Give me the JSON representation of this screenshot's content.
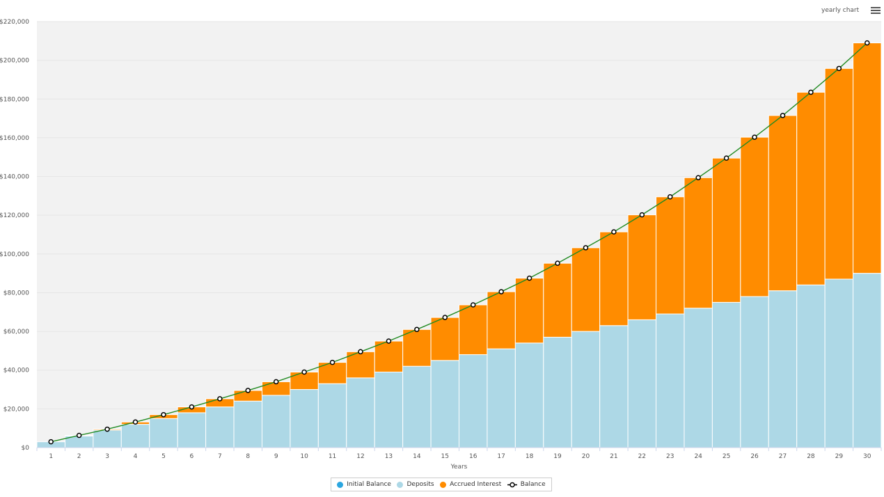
{
  "menu": {
    "title": "yearly chart",
    "icon": "hamburger-menu-icon"
  },
  "colors": {
    "initial_balance": "#2ba6e0",
    "deposits": "#add8e6",
    "accrued_interest": "#ff8c00",
    "balance_line": "#228b22",
    "plot_bg": "#f2f2f2"
  },
  "legend": [
    {
      "label": "Initial Balance",
      "color": "#2ba6e0",
      "kind": "dot"
    },
    {
      "label": "Deposits",
      "color": "#add8e6",
      "kind": "dot"
    },
    {
      "label": "Accrued Interest",
      "color": "#ff8c00",
      "kind": "dot"
    },
    {
      "label": "Balance",
      "color": "#000000",
      "kind": "line-marker"
    }
  ],
  "chart_data": {
    "type": "bar",
    "stacked": true,
    "title": "",
    "xlabel": "Years",
    "ylabel": "",
    "ylim": [
      0,
      220000
    ],
    "y_ticks": [
      0,
      20000,
      40000,
      60000,
      80000,
      100000,
      120000,
      140000,
      160000,
      180000,
      200000,
      220000
    ],
    "y_tick_labels": [
      "$0",
      "$20,000",
      "$40,000",
      "$60,000",
      "$80,000",
      "$100,000",
      "$120,000",
      "$140,000",
      "$160,000",
      "$180,000",
      "$200,000",
      "$220,000"
    ],
    "categories": [
      "1",
      "2",
      "3",
      "4",
      "5",
      "6",
      "7",
      "8",
      "9",
      "10",
      "11",
      "12",
      "13",
      "14",
      "15",
      "16",
      "17",
      "18",
      "19",
      "20",
      "21",
      "22",
      "23",
      "24",
      "25",
      "26",
      "27",
      "28",
      "29",
      "30"
    ],
    "series": [
      {
        "name": "Initial Balance",
        "values": [
          0,
          0,
          0,
          0,
          0,
          0,
          0,
          0,
          0,
          0,
          0,
          0,
          0,
          0,
          0,
          0,
          0,
          0,
          0,
          0,
          0,
          0,
          0,
          0,
          0,
          0,
          0,
          0,
          0,
          0
        ]
      },
      {
        "name": "Deposits",
        "values": [
          3000,
          6000,
          9000,
          12000,
          15000,
          18000,
          21000,
          24000,
          27000,
          30000,
          33000,
          36000,
          39000,
          42000,
          45000,
          48000,
          51000,
          54000,
          57000,
          60000,
          63000,
          66000,
          69000,
          72000,
          75000,
          78000,
          81000,
          84000,
          87000,
          90000
        ]
      },
      {
        "name": "Accrued Interest",
        "values": [
          0,
          300,
          500,
          1200,
          2000,
          3000,
          4200,
          5500,
          7000,
          9000,
          11000,
          13500,
          16000,
          19000,
          22200,
          25700,
          29500,
          33500,
          38200,
          43200,
          48400,
          54200,
          60500,
          67400,
          74500,
          82300,
          90500,
          99500,
          108800,
          119000
        ]
      },
      {
        "name": "Balance",
        "type": "line",
        "values": [
          3000,
          6300,
          9500,
          13200,
          17000,
          21000,
          25200,
          29500,
          34000,
          39000,
          44000,
          49500,
          55000,
          61000,
          67200,
          73700,
          80500,
          87500,
          95200,
          103200,
          111400,
          120200,
          129500,
          139400,
          149500,
          160300,
          171500,
          183500,
          195800,
          209000
        ]
      }
    ]
  }
}
